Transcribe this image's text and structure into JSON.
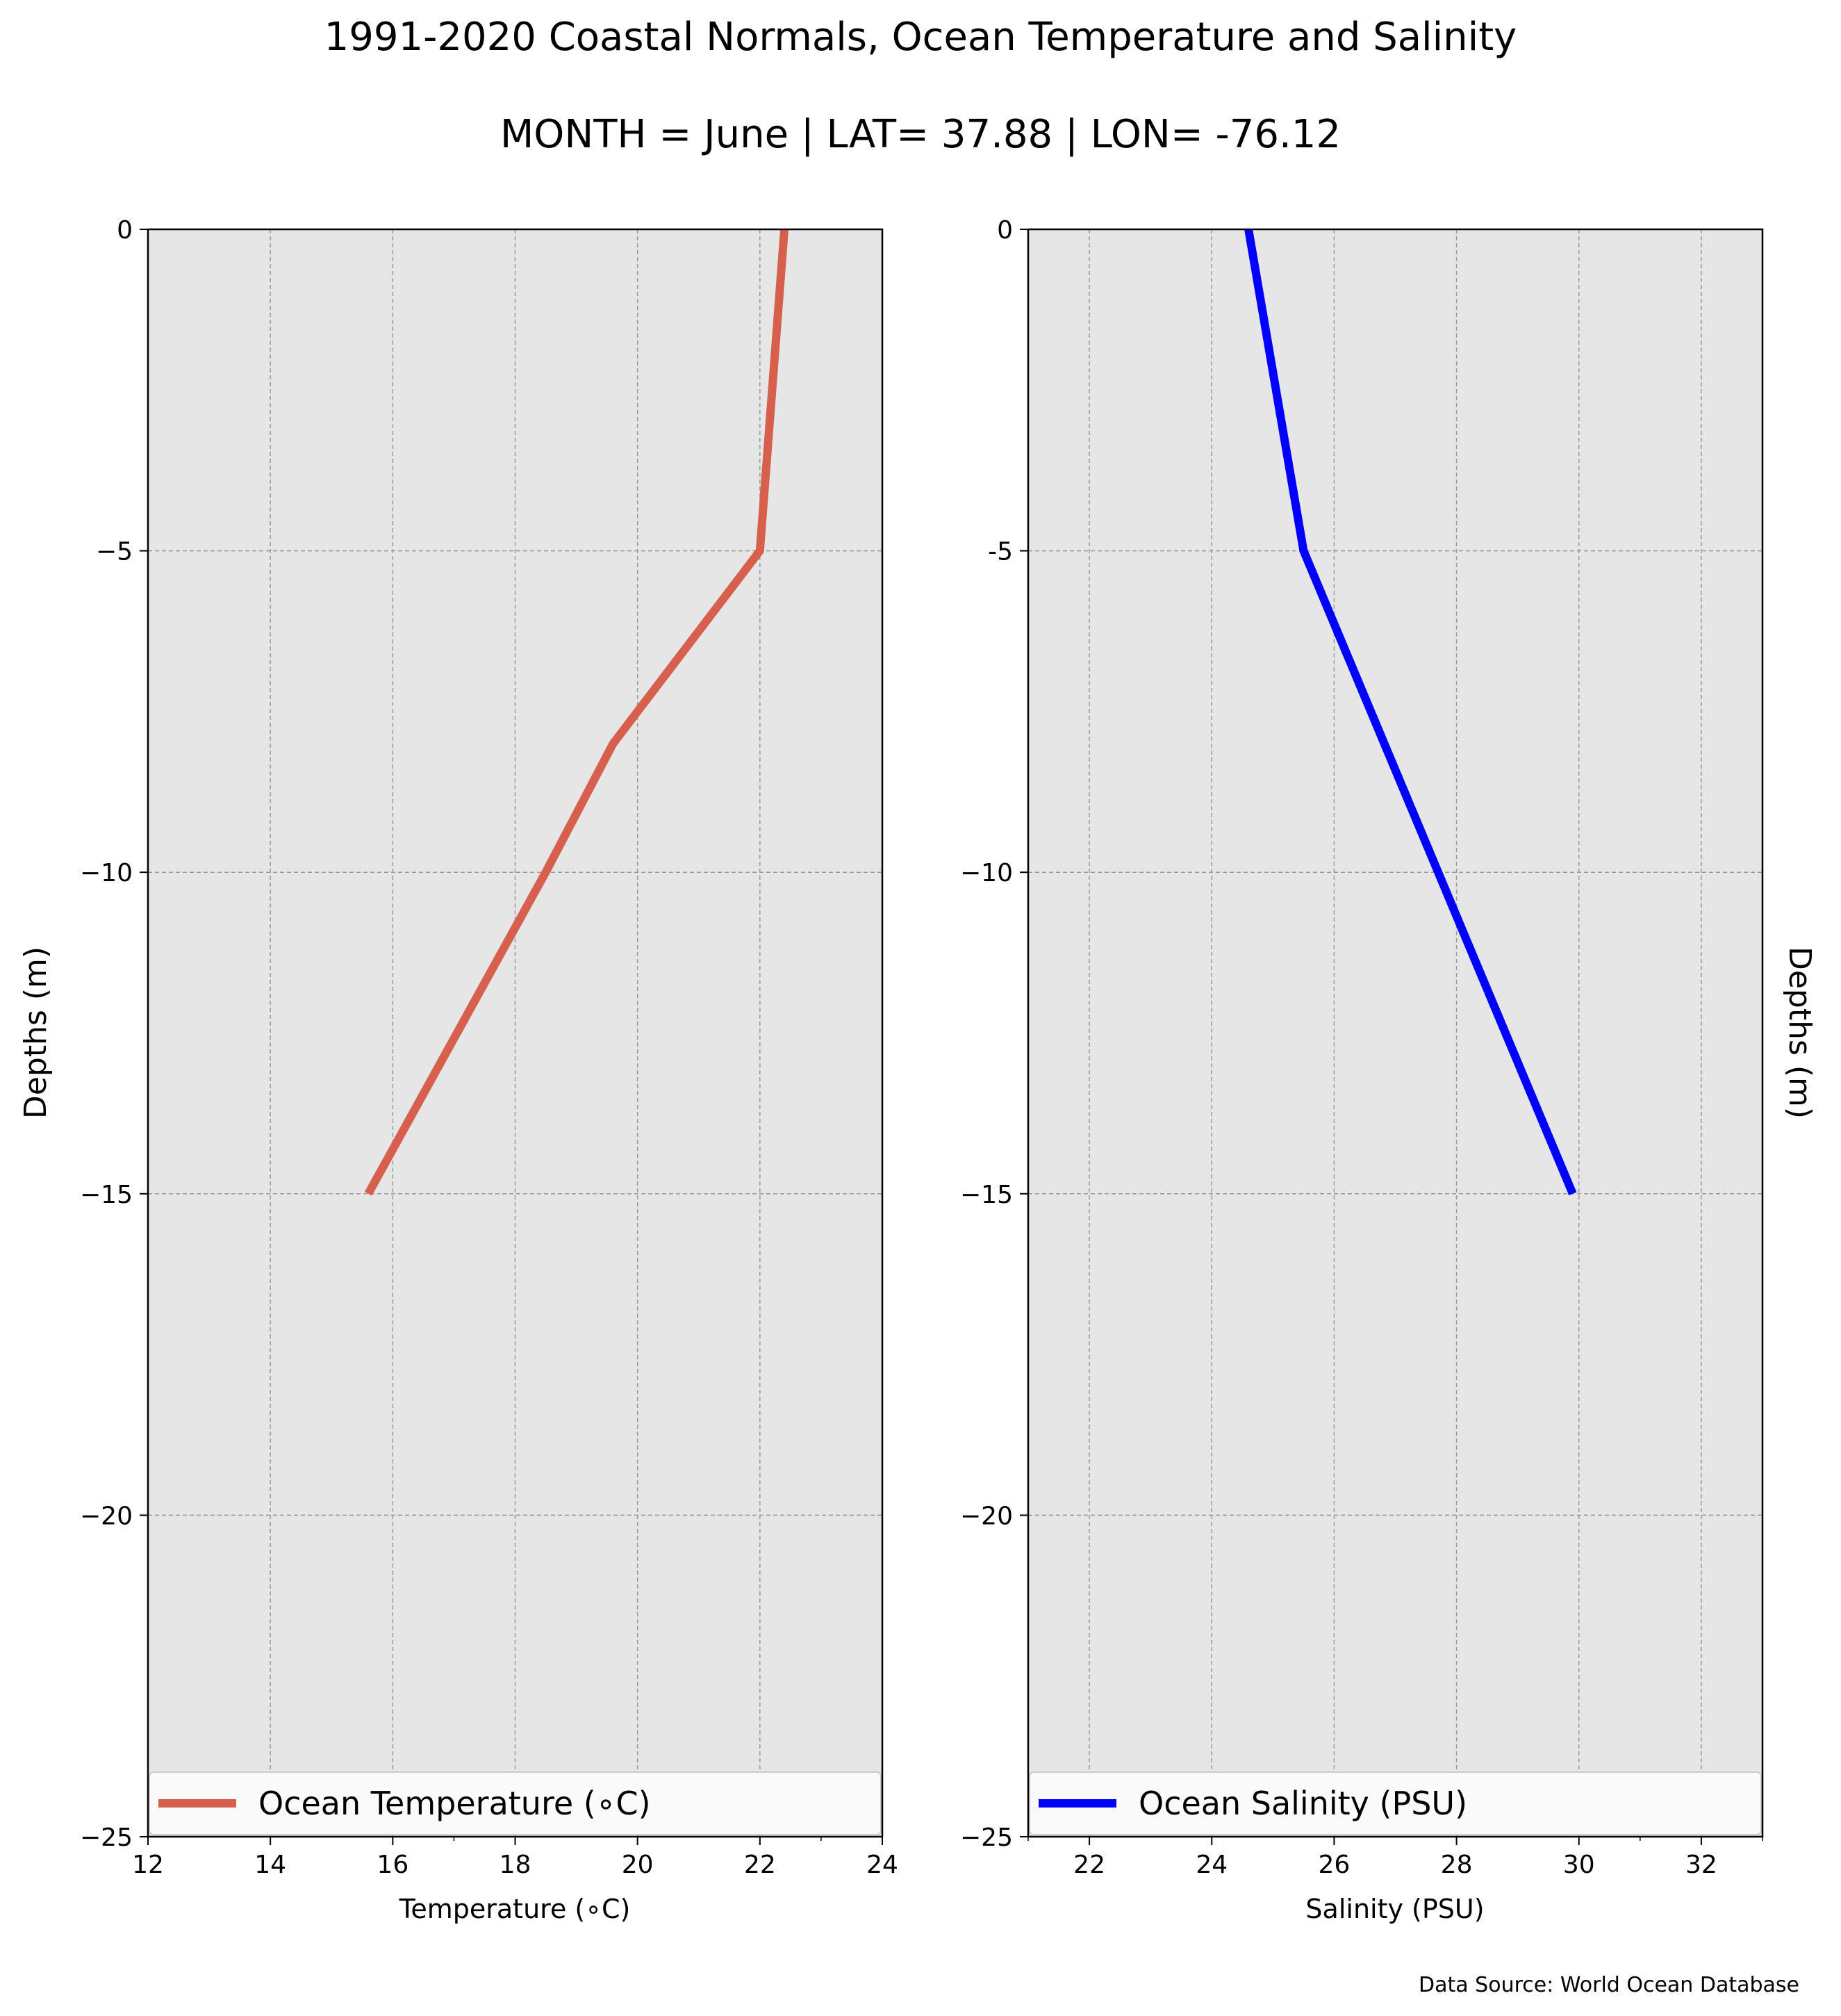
{
  "title_line1": "1991-2020 Coastal Normals, Ocean Temperature and Salinity",
  "title_line2": "MONTH = June | LAT= 37.88 | LON= -76.12",
  "source_note": "Data Source: World Ocean Database",
  "chart_data": [
    {
      "type": "line",
      "ylabel": "Depths (m)",
      "xlabel": "Temperature (∘C)",
      "xlim": [
        12,
        24
      ],
      "ylim": [
        -25,
        0
      ],
      "xticks": [
        12,
        14,
        16,
        18,
        20,
        22,
        24
      ],
      "xtick_labels": [
        "12",
        "14",
        "16",
        "18",
        "20",
        "22",
        "24"
      ],
      "yticks": [
        0,
        -5,
        -10,
        -15,
        -20,
        -25
      ],
      "ytick_labels": [
        "0",
        "−5",
        "−10",
        "−15",
        "−20",
        "−25"
      ],
      "grid": true,
      "legend_position": "bottom",
      "series": [
        {
          "name": "Ocean Temperature (∘C)",
          "color": "#d6604d",
          "x": [
            22.4,
            22.0,
            19.6,
            18.5,
            15.6
          ],
          "y": [
            0,
            -5,
            -8,
            -10,
            -15
          ]
        }
      ]
    },
    {
      "type": "line",
      "ylabel": "Depths (m)",
      "xlabel": "Salinity (PSU)",
      "xlim": [
        21,
        33
      ],
      "ylim": [
        -25,
        0
      ],
      "xticks": [
        22,
        24,
        26,
        28,
        30,
        32
      ],
      "xtick_labels": [
        "22",
        "24",
        "26",
        "28",
        "30",
        "32"
      ],
      "yticks": [
        0,
        -5,
        -10,
        -15,
        -20,
        -25
      ],
      "ytick_labels": [
        "0",
        "-5",
        "−10",
        "−15",
        "−20",
        "−25"
      ],
      "grid": true,
      "legend_position": "bottom",
      "series": [
        {
          "name": "Ocean Salinity (PSU)",
          "color": "#0000ff",
          "x": [
            24.6,
            25.5,
            29.9
          ],
          "y": [
            0,
            -5,
            -15
          ]
        }
      ]
    }
  ]
}
